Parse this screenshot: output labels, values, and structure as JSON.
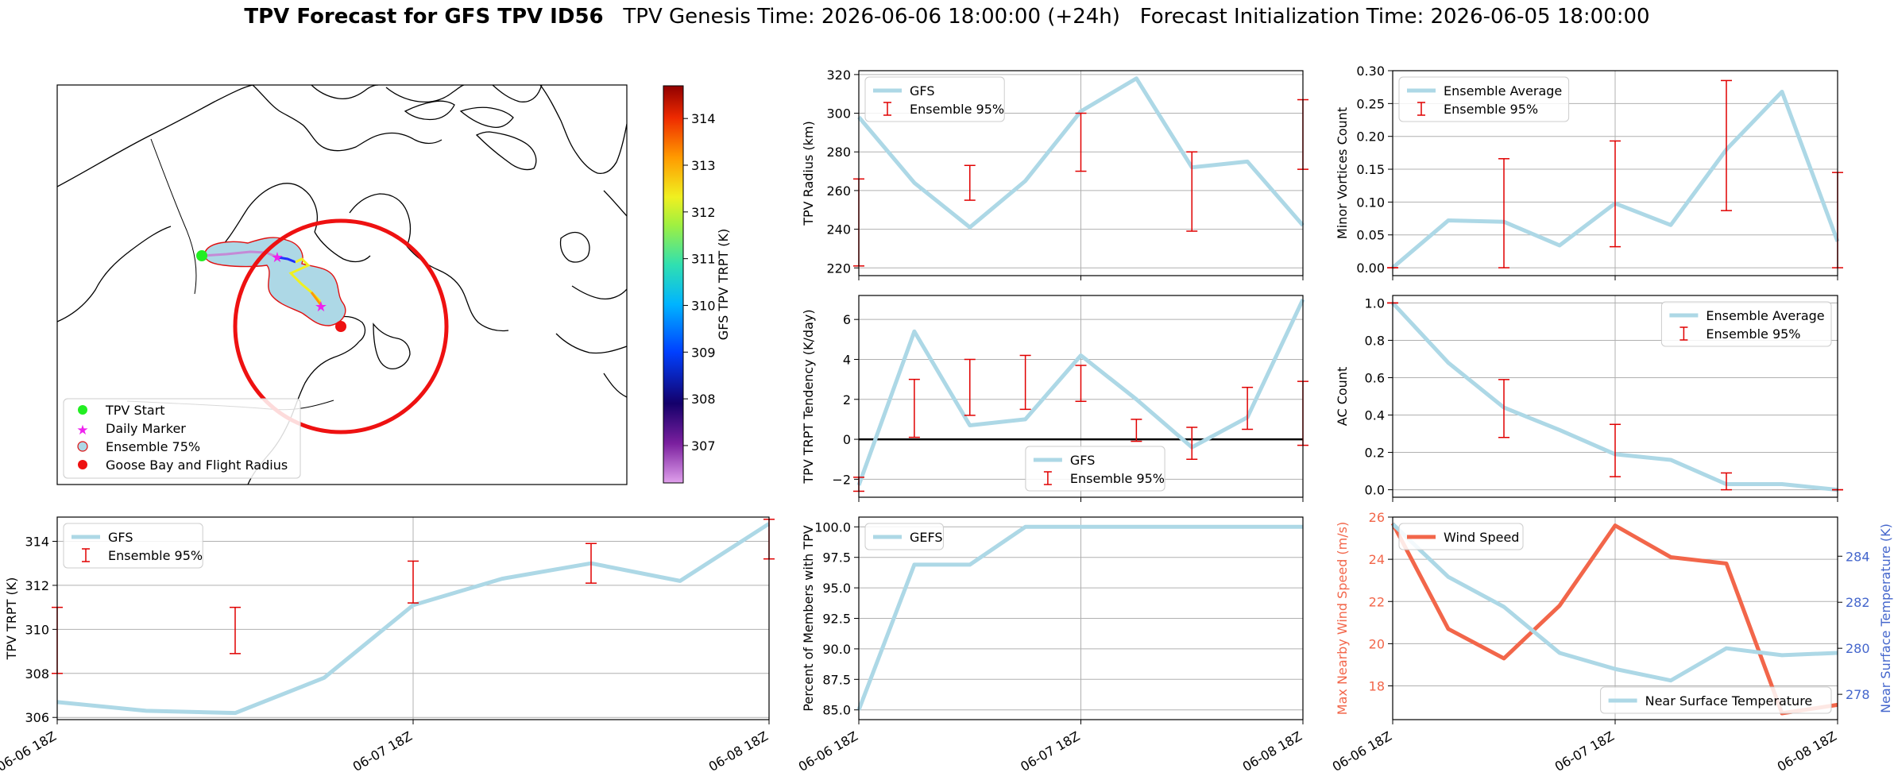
{
  "figure": {
    "title_bold": "TPV Forecast for GFS TPV ID56",
    "title_rest": "   TPV Genesis Time: 2026-06-06 18:00:00 (+24h)   Forecast Initialization Time: 2026-06-05 18:00:00"
  },
  "colors": {
    "gfs_line": "#add8e6",
    "ensemble_bar": "#e00000",
    "wind": "#f2664a",
    "temp_axis": "#4466cc",
    "goose_bay": "#ee1111",
    "start": "#22ee22",
    "daily": "#ee22ee"
  },
  "map": {
    "colorbar_label": "GFS TPV TRPT (K)",
    "colorbar_ticks": [
      "307",
      "308",
      "309",
      "310",
      "311",
      "312",
      "313",
      "314"
    ],
    "colorbar_range": [
      306.2,
      314.7
    ],
    "legend": [
      "TPV Start",
      "Daily Marker",
      "Ensemble 75%",
      "Goose Bay and Flight Radius"
    ]
  },
  "x_ticks": [
    "06-06 18Z",
    "06-07 18Z",
    "06-08 18Z"
  ],
  "chart_data": [
    {
      "id": "radius",
      "type": "line",
      "ylabel": "TPV Radius (km)",
      "ylim": [
        216,
        322
      ],
      "yticks": [
        "220",
        "240",
        "260",
        "280",
        "300",
        "320"
      ],
      "ytick_values": [
        220,
        240,
        260,
        280,
        300,
        320
      ],
      "x": [
        0,
        6,
        12,
        18,
        24,
        30,
        36,
        42,
        48
      ],
      "series": [
        {
          "name": "GFS",
          "values": [
            298,
            264,
            241,
            265,
            301,
            318,
            272,
            275,
            242
          ]
        }
      ],
      "errorbars": {
        "name": "Ensemble 95%",
        "x": [
          0,
          12,
          24,
          36,
          48
        ],
        "low": [
          221,
          255,
          270,
          239,
          271
        ],
        "high": [
          266,
          273,
          300,
          280,
          307
        ]
      },
      "legend": [
        "GFS",
        "Ensemble 95%"
      ],
      "legend_pos": "top-left"
    },
    {
      "id": "minor",
      "type": "line",
      "ylabel": "Minor Vortices Count",
      "ylim": [
        -0.012,
        0.3
      ],
      "yticks": [
        "0.00",
        "0.05",
        "0.10",
        "0.15",
        "0.20",
        "0.25",
        "0.30"
      ],
      "ytick_values": [
        0,
        0.05,
        0.1,
        0.15,
        0.2,
        0.25,
        0.3
      ],
      "x": [
        0,
        6,
        12,
        18,
        24,
        30,
        36,
        42,
        48
      ],
      "series": [
        {
          "name": "Ensemble Average",
          "values": [
            0.0,
            0.072,
            0.07,
            0.034,
            0.098,
            0.065,
            0.18,
            0.268,
            0.04
          ]
        }
      ],
      "errorbars": {
        "name": "Ensemble 95%",
        "x": [
          0,
          12,
          24,
          36,
          48
        ],
        "low": [
          0.0,
          0.0,
          0.032,
          0.087,
          0.0
        ],
        "high": [
          0.0,
          0.166,
          0.193,
          0.285,
          0.145
        ]
      },
      "legend": [
        "Ensemble Average",
        "Ensemble 95%"
      ],
      "legend_pos": "top-left"
    },
    {
      "id": "tendency",
      "type": "line",
      "ylabel": "TPV TRPT Tendency (K/day)",
      "ylim": [
        -2.9,
        7.2
      ],
      "yticks": [
        "−2",
        "0",
        "2",
        "4",
        "6"
      ],
      "ytick_values": [
        -2,
        0,
        2,
        4,
        6
      ],
      "zero_line": true,
      "x": [
        0,
        6,
        12,
        18,
        24,
        30,
        36,
        42,
        48
      ],
      "series": [
        {
          "name": "GFS",
          "values": [
            -2.3,
            5.4,
            0.7,
            1.0,
            4.2,
            2.0,
            -0.4,
            1.1,
            7.0
          ]
        }
      ],
      "errorbars": {
        "name": "Ensemble 95%",
        "x": [
          0,
          6,
          12,
          18,
          24,
          30,
          36,
          42,
          48
        ],
        "low": [
          -2.6,
          0.1,
          1.2,
          1.5,
          1.9,
          -0.1,
          -1.0,
          0.5,
          -0.3
        ],
        "high": [
          -1.9,
          3.0,
          4.0,
          4.2,
          3.7,
          1.0,
          0.6,
          2.6,
          2.9
        ]
      },
      "legend": [
        "GFS",
        "Ensemble 95%"
      ],
      "legend_pos": "bottom-center"
    },
    {
      "id": "ac",
      "type": "line",
      "ylabel": "AC Count",
      "ylim": [
        -0.04,
        1.04
      ],
      "yticks": [
        "0.0",
        "0.2",
        "0.4",
        "0.6",
        "0.8",
        "1.0"
      ],
      "ytick_values": [
        0,
        0.2,
        0.4,
        0.6,
        0.8,
        1.0
      ],
      "x": [
        0,
        6,
        12,
        18,
        24,
        30,
        36,
        42,
        48
      ],
      "series": [
        {
          "name": "Ensemble Average",
          "values": [
            1.0,
            0.68,
            0.44,
            0.32,
            0.19,
            0.16,
            0.03,
            0.03,
            0.0
          ]
        }
      ],
      "errorbars": {
        "name": "Ensemble 95%",
        "x": [
          0,
          12,
          24,
          36,
          48
        ],
        "low": [
          1.0,
          0.28,
          0.07,
          0.0,
          0.0
        ],
        "high": [
          1.0,
          0.59,
          0.35,
          0.09,
          0.0
        ]
      },
      "legend": [
        "Ensemble Average",
        "Ensemble 95%"
      ],
      "legend_pos": "top-right"
    },
    {
      "id": "trpt",
      "type": "line",
      "ylabel": "TPV TRPT (K)",
      "ylim": [
        305.9,
        315.1
      ],
      "yticks": [
        "306",
        "308",
        "310",
        "312",
        "314"
      ],
      "ytick_values": [
        306,
        308,
        310,
        312,
        314
      ],
      "x": [
        0,
        6,
        12,
        18,
        24,
        30,
        36,
        42,
        48
      ],
      "series": [
        {
          "name": "GFS",
          "values": [
            306.7,
            306.3,
            306.2,
            307.8,
            311.1,
            312.3,
            313.0,
            312.2,
            314.8
          ]
        }
      ],
      "errorbars": {
        "name": "Ensemble 95%",
        "x": [
          0,
          12,
          24,
          36,
          48
        ],
        "low": [
          308.0,
          308.9,
          311.2,
          312.1,
          313.2
        ],
        "high": [
          311.0,
          311.0,
          313.1,
          313.9,
          315.0
        ]
      },
      "legend": [
        "GFS",
        "Ensemble 95%"
      ],
      "legend_pos": "top-left"
    },
    {
      "id": "members",
      "type": "line",
      "ylabel": "Percent of Members with TPV",
      "ylim": [
        84.2,
        100.8
      ],
      "yticks": [
        "85.0",
        "87.5",
        "90.0",
        "92.5",
        "95.0",
        "97.5",
        "100.0"
      ],
      "ytick_values": [
        85,
        87.5,
        90,
        92.5,
        95,
        97.5,
        100
      ],
      "x": [
        0,
        6,
        12,
        18,
        24,
        30,
        36,
        42,
        48
      ],
      "series": [
        {
          "name": "GEFS",
          "values": [
            85.0,
            96.9,
            96.9,
            100.0,
            100.0,
            100.0,
            100.0,
            100.0,
            100.0
          ]
        }
      ],
      "legend": [
        "GEFS"
      ],
      "legend_pos": "top-left"
    },
    {
      "id": "wind",
      "type": "line",
      "ylabel": "Max Nearby Wind Speed (m/s)",
      "ylim": [
        16.4,
        26.0
      ],
      "yticks": [
        "18",
        "20",
        "22",
        "24",
        "26"
      ],
      "ytick_values": [
        18,
        20,
        22,
        24,
        26
      ],
      "y2label": "Near Surface Temperature (K)",
      "y2lim": [
        276.9,
        285.7
      ],
      "y2ticks": [
        "278",
        "280",
        "282",
        "284"
      ],
      "y2tick_values": [
        278,
        280,
        282,
        284
      ],
      "x": [
        0,
        6,
        12,
        18,
        24,
        30,
        36,
        42,
        48
      ],
      "series": [
        {
          "name": "Wind Speed",
          "axis": "left",
          "values": [
            25.7,
            20.7,
            19.3,
            21.8,
            25.6,
            24.1,
            23.8,
            16.7,
            17.1
          ]
        },
        {
          "name": "Near Surface Temperature",
          "axis": "right",
          "values": [
            285.4,
            283.1,
            281.8,
            279.8,
            279.1,
            278.6,
            280.0,
            279.7,
            279.8
          ]
        }
      ],
      "legend": [
        "Wind Speed"
      ],
      "legend2": [
        "Near Surface Temperature"
      ]
    }
  ]
}
